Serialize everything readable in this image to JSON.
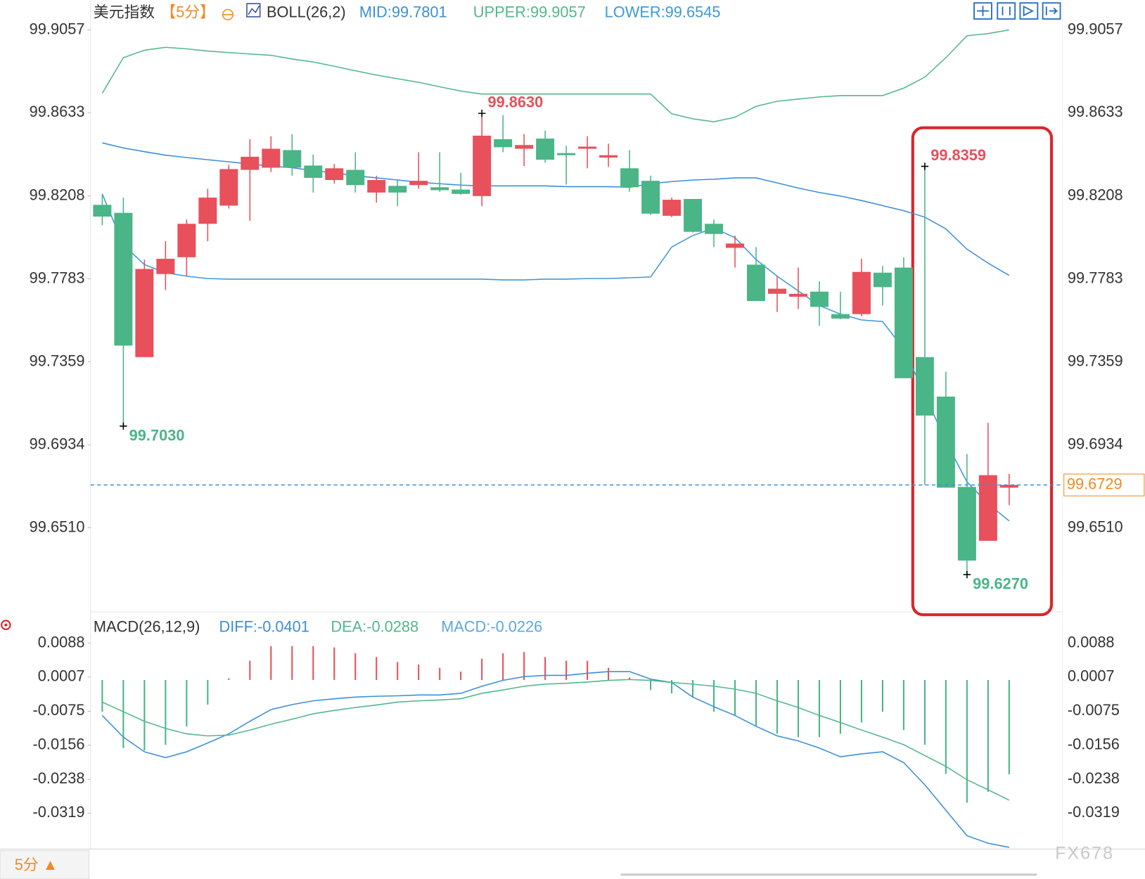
{
  "chart_data": [
    {
      "type": "candlestick",
      "title": "美元指数",
      "period": "【5分】",
      "indicator": "BOLL(26,2)",
      "indicator_labels": [
        "MID:99.7801",
        "UPPER:99.9057",
        "LOWER:99.6545"
      ],
      "up_color": "#e8505b",
      "down_color": "#4ab587",
      "open": [
        99.8162,
        99.8121,
        99.7383,
        99.7808,
        99.7894,
        99.8065,
        99.8158,
        99.8341,
        99.8352,
        99.8442,
        99.8363,
        99.8289,
        99.8341,
        99.8225,
        99.8259,
        99.8263,
        99.8252,
        99.824,
        99.8207,
        99.8498,
        99.8449,
        99.8501,
        99.8427,
        99.8449,
        99.8404,
        99.8349,
        99.8285,
        99.8106,
        99.8192,
        99.8065,
        99.7942,
        99.7856,
        99.7707,
        99.7692,
        99.7718,
        99.7603,
        99.7603,
        99.7815,
        99.7841,
        99.7383,
        99.7181,
        99.6719,
        99.6443,
        99.6715
      ],
      "high": [
        99.8218,
        99.8199,
        99.7882,
        99.7976,
        99.8087,
        99.8244,
        99.8367,
        99.8498,
        99.8513,
        99.8524,
        99.8419,
        99.8371,
        99.8431,
        99.8311,
        99.8293,
        99.8431,
        99.8431,
        99.8326,
        99.863,
        99.8621,
        99.8524,
        99.8542,
        99.8464,
        99.8513,
        99.8475,
        99.8442,
        99.8311,
        99.8199,
        99.8192,
        99.8087,
        99.8005,
        99.7946,
        99.7797,
        99.7841,
        99.7771,
        99.7718,
        99.7886,
        99.7849,
        99.7894,
        99.8359,
        99.7308,
        99.6887,
        99.7047,
        99.6786
      ],
      "low": [
        99.8058,
        99.703,
        99.7383,
        99.7726,
        99.7797,
        99.7976,
        99.8143,
        99.808,
        99.833,
        99.8311,
        99.8225,
        99.827,
        99.8225,
        99.8173,
        99.8155,
        99.8244,
        99.8229,
        99.8214,
        99.8155,
        99.8431,
        99.836,
        99.8378,
        99.8266,
        99.8349,
        99.8356,
        99.8229,
        99.811,
        99.8099,
        99.802,
        99.7946,
        99.7841,
        99.767,
        99.7614,
        99.7629,
        99.7543,
        99.7577,
        99.7592,
        99.7647,
        99.7275,
        99.673,
        99.6715,
        99.627,
        99.6443,
        99.6626
      ],
      "close": [
        99.8102,
        99.7442,
        99.7834,
        99.7886,
        99.8065,
        99.8199,
        99.8345,
        99.8408,
        99.8449,
        99.8352,
        99.83,
        99.8349,
        99.8263,
        99.8289,
        99.8225,
        99.8285,
        99.8237,
        99.8218,
        99.8516,
        99.8457,
        99.8468,
        99.8393,
        99.8416,
        99.846,
        99.8416,
        99.8252,
        99.8117,
        99.8188,
        99.8024,
        99.8013,
        99.7964,
        99.767,
        99.7733,
        99.7707,
        99.764,
        99.758,
        99.7819,
        99.7741,
        99.7275,
        99.7084,
        99.6715,
        99.6342,
        99.6779,
        99.6729
      ],
      "series": [
        {
          "color": "#3d8fd6",
          "values": [
            99.8479,
            99.8453,
            99.8434,
            99.8416,
            99.8404,
            99.8393,
            99.8382,
            99.8371,
            99.836,
            99.8352,
            99.8337,
            99.8326,
            99.8311,
            99.83,
            99.8289,
            99.8278,
            99.827,
            99.8263,
            99.8259,
            99.8259,
            99.8259,
            99.8259,
            99.8255,
            99.8255,
            99.8255,
            99.8252,
            99.827,
            99.8281,
            99.8289,
            99.8293,
            99.83,
            99.83,
            99.8274,
            99.8248,
            99.8225,
            99.8207,
            99.8184,
            99.8158,
            99.8132,
            99.8099,
            99.8039,
            99.7935,
            99.7864,
            99.7801
          ]
        },
        {
          "color": "#52b88a",
          "values": [
            99.8733,
            99.8915,
            99.8953,
            99.8968,
            99.896,
            99.8949,
            99.8941,
            99.8934,
            99.8927,
            99.8908,
            99.8893,
            99.8871,
            99.8848,
            99.8826,
            99.8807,
            99.8789,
            99.8766,
            99.8744,
            99.8729,
            99.8729,
            99.8729,
            99.8729,
            99.8729,
            99.8729,
            99.8729,
            99.8729,
            99.8729,
            99.8628,
            99.8602,
            99.8587,
            99.861,
            99.8666,
            99.8692,
            99.8703,
            99.8714,
            99.8721,
            99.8721,
            99.8721,
            99.8759,
            99.8815,
            99.8915,
            99.9027,
            99.9038,
            99.9057
          ]
        },
        {
          "color": "#3d9ad6",
          "values": [
            99.8218,
            99.7957,
            99.7856,
            99.7815,
            99.7797,
            99.7785,
            99.7782,
            99.7782,
            99.7782,
            99.7782,
            99.7782,
            99.7782,
            99.7782,
            99.7782,
            99.7782,
            99.7782,
            99.7782,
            99.7782,
            99.7782,
            99.7778,
            99.7778,
            99.7782,
            99.7782,
            99.7785,
            99.7785,
            99.7789,
            99.7793,
            99.7946,
            99.8005,
            99.8043,
            99.7994,
            99.7882,
            99.7797,
            99.7722,
            99.7647,
            99.7603,
            99.7573,
            99.7565,
            99.7424,
            99.7193,
            99.695,
            99.6745,
            99.6633,
            99.6545
          ]
        }
      ],
      "ylim": [
        99.608,
        99.921
      ],
      "yticks": [
        99.9057,
        99.8633,
        99.8208,
        99.7783,
        99.7359,
        99.6934,
        {
          "value": 99.651,
          "label": "99.6510"
        }
      ],
      "annotations": [
        {
          "value": 99.863,
          "label": "99.8630"
        },
        {
          "value": 99.703,
          "label": "99.7030"
        },
        {
          "value": 99.8359,
          "label": "99.8359"
        },
        {
          "value": 99.627,
          "label": "99.6270"
        }
      ],
      "last_price": {
        "value": 99.6729,
        "label": "99.6729"
      },
      "last_color": "#f08a24"
    },
    {
      "type": "macd",
      "title": "MACD(26,12,9)",
      "indicator_labels": [
        "DIFF:-0.0401",
        "DEA:-0.0288",
        "MACD:-0.0226"
      ],
      "histogram": {
        "up_color": "#e8505b",
        "down_color": "#4ab587",
        "values": [
          -0.0076,
          -0.0163,
          -0.0169,
          -0.0155,
          -0.0111,
          -0.0059,
          0.0004,
          0.0046,
          0.0081,
          0.0081,
          0.0081,
          0.0078,
          0.0064,
          0.0055,
          0.0043,
          0.0037,
          0.0029,
          0.002,
          0.0051,
          0.0064,
          0.0067,
          0.0055,
          0.0046,
          0.0046,
          0.0029,
          0.0006,
          -0.0024,
          -0.0032,
          -0.0041,
          -0.0076,
          -0.0085,
          -0.0111,
          -0.0129,
          -0.0137,
          -0.0137,
          -0.0129,
          -0.0102,
          -0.0076,
          -0.012,
          -0.0155,
          -0.0225,
          -0.0294,
          -0.0268,
          -0.0226
        ]
      },
      "series": [
        {
          "color": "#3d8fd6",
          "values": [
            -0.0085,
            -0.0137,
            -0.0172,
            -0.0186,
            -0.0172,
            -0.0151,
            -0.0129,
            -0.0099,
            -0.0071,
            -0.0059,
            -0.005,
            -0.0045,
            -0.0041,
            -0.0039,
            -0.0038,
            -0.0036,
            -0.0036,
            -0.0032,
            -0.0015,
            -0.0001,
            0.0008,
            0.0011,
            0.0011,
            0.0016,
            0.002,
            0.002,
            0.0002,
            -0.0006,
            -0.0041,
            -0.0064,
            -0.0085,
            -0.0111,
            -0.0134,
            -0.0146,
            -0.0163,
            -0.0184,
            -0.0177,
            -0.0172,
            -0.0198,
            -0.0251,
            -0.0312,
            -0.0373,
            -0.0391,
            -0.0401
          ]
        },
        {
          "color": "#52b88a",
          "values": [
            -0.0053,
            -0.0076,
            -0.0099,
            -0.0116,
            -0.0129,
            -0.0134,
            -0.0132,
            -0.012,
            -0.0106,
            -0.0094,
            -0.0081,
            -0.0073,
            -0.0066,
            -0.006,
            -0.0053,
            -0.005,
            -0.0048,
            -0.0045,
            -0.0032,
            -0.0024,
            -0.0015,
            -0.001,
            -0.0008,
            -0.0005,
            -0.0001,
            0.0001,
            -0.0001,
            -0.0006,
            -0.001,
            -0.0015,
            -0.0022,
            -0.0032,
            -0.005,
            -0.0066,
            -0.0085,
            -0.0102,
            -0.012,
            -0.0137,
            -0.0155,
            -0.0181,
            -0.0207,
            -0.0239,
            -0.0263,
            -0.0288
          ]
        }
      ],
      "ylim": [
        -0.0405,
        0.0151
      ],
      "yticks": [
        0.0088,
        0.0007,
        -0.0075,
        -0.0156,
        -0.0238,
        -0.0319
      ]
    }
  ],
  "footer": {
    "period_tab": "5分 ▲",
    "watermark": "FX678"
  }
}
